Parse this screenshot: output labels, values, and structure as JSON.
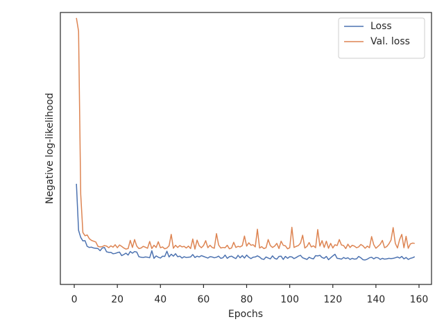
{
  "chart_data": {
    "type": "line",
    "xlabel": "Epochs",
    "ylabel": "Negative log-likelihood",
    "xlim": [
      -6.45,
      165.8
    ],
    "xticks": [
      0,
      20,
      40,
      60,
      80,
      100,
      120,
      140,
      160
    ],
    "ylim": [
      0,
      100
    ],
    "legend": "upper right",
    "grid": false,
    "x": [
      1,
      2,
      3,
      4,
      5,
      6,
      7,
      8,
      9,
      10,
      11,
      12,
      13,
      14,
      15,
      16,
      17,
      18,
      19,
      20,
      21,
      22,
      23,
      24,
      25,
      26,
      27,
      28,
      29,
      30,
      31,
      32,
      33,
      34,
      35,
      36,
      37,
      38,
      39,
      40,
      41,
      42,
      43,
      44,
      45,
      46,
      47,
      48,
      49,
      50,
      51,
      52,
      53,
      54,
      55,
      56,
      57,
      58,
      59,
      60,
      61,
      62,
      63,
      64,
      65,
      66,
      67,
      68,
      69,
      70,
      71,
      72,
      73,
      74,
      75,
      76,
      77,
      78,
      79,
      80,
      81,
      82,
      83,
      84,
      85,
      86,
      87,
      88,
      89,
      90,
      91,
      92,
      93,
      94,
      95,
      96,
      97,
      98,
      99,
      100,
      101,
      102,
      103,
      104,
      105,
      106,
      107,
      108,
      109,
      110,
      111,
      112,
      113,
      114,
      115,
      116,
      117,
      118,
      119,
      120,
      121,
      122,
      123,
      124,
      125,
      126,
      127,
      128,
      129,
      130,
      131,
      132,
      133,
      134,
      135,
      136,
      137,
      138,
      139,
      140,
      141,
      142,
      143,
      144,
      145,
      146,
      147,
      148,
      149,
      150,
      151,
      152,
      153,
      154,
      155,
      156,
      157,
      158
    ],
    "series": [
      {
        "name": "Loss",
        "color": "#4c72b0",
        "values": [
          37,
          19.9,
          17.3,
          16,
          16.1,
          14,
          13.6,
          13.7,
          13.4,
          13.3,
          13.2,
          12.4,
          13.4,
          13.6,
          12,
          11.8,
          11.8,
          11.3,
          11.4,
          11.7,
          11.9,
          10.6,
          11,
          11.5,
          10.8,
          12.1,
          11.5,
          12.1,
          11.9,
          10.2,
          10,
          9.9,
          10.1,
          10,
          9.8,
          12.4,
          9.6,
          10.5,
          10,
          9.7,
          10.4,
          10.3,
          12.2,
          10.1,
          11.1,
          10.4,
          11.3,
          10.2,
          10.4,
          9.7,
          10.2,
          9.9,
          10,
          10.1,
          11,
          9.9,
          10.4,
          10.1,
          10.6,
          10.3,
          10,
          9.7,
          10.2,
          10.1,
          9.8,
          10,
          10.4,
          9.6,
          9.8,
          10.8,
          9.6,
          10.2,
          10.4,
          9.9,
          9.5,
          10.7,
          9.8,
          10.6,
          9.7,
          10.8,
          10,
          9.5,
          10,
          10.1,
          10.5,
          10.1,
          9.4,
          9.2,
          10.1,
          9.7,
          9.4,
          10.5,
          9.6,
          9.3,
          10.3,
          10.4,
          9.2,
          10.3,
          9.6,
          10.2,
          10.1,
          9.5,
          9.9,
          10.4,
          10.7,
          9.8,
          9.5,
          9.2,
          10,
          9.6,
          9.4,
          10.6,
          10.5,
          10.7,
          9.9,
          9.6,
          10.3,
          9.1,
          9.8,
          10.5,
          11.1,
          9.6,
          9.5,
          9.3,
          9.9,
          9.5,
          9.8,
          9.2,
          9.6,
          9.3,
          9.4,
          10.3,
          9.8,
          9.1,
          9,
          9.3,
          9.8,
          10,
          9.4,
          9.9,
          9.8,
          9.2,
          9.6,
          9.3,
          9.4,
          9.6,
          9.5,
          9.6,
          9.8,
          10.1,
          9.7,
          10.3,
          9.4,
          9.9,
          9.2,
          9.6,
          9.8,
          10.2
        ]
      },
      {
        "name": "Val. loss",
        "color": "#dd8452",
        "values": [
          98,
          93.1,
          33.2,
          19.1,
          17.9,
          18.2,
          16.8,
          16.2,
          15.9,
          15.6,
          14,
          13.8,
          13.9,
          14.3,
          14.1,
          13.5,
          14.2,
          13.7,
          14.6,
          13.5,
          14.5,
          14,
          13.4,
          13,
          13.2,
          16.2,
          13.6,
          16.5,
          14.1,
          13.2,
          13.4,
          14,
          13.7,
          13.3,
          15.8,
          13.2,
          14.4,
          13.6,
          15.7,
          13.5,
          13.8,
          13.1,
          13.4,
          14.2,
          18.4,
          13.3,
          14.4,
          13.6,
          14.3,
          13.8,
          14,
          13.4,
          14.1,
          13.2,
          16.7,
          13,
          16.3,
          14.2,
          13.5,
          14.3,
          16.1,
          13.5,
          14.4,
          13.6,
          13.3,
          18.7,
          14.5,
          13.4,
          13.6,
          13.5,
          14.4,
          13.1,
          13.4,
          15.5,
          13.6,
          14,
          13.8,
          14.3,
          17.8,
          14.1,
          15.3,
          14.4,
          14.6,
          13.8,
          20.3,
          13.4,
          13.9,
          13.2,
          13.5,
          16.5,
          14.3,
          13.6,
          14.1,
          15.1,
          13.2,
          15.9,
          14.4,
          14.2,
          13.1,
          13.5,
          21,
          13.6,
          14,
          14.3,
          15.2,
          18.1,
          13.4,
          14,
          15.4,
          13.8,
          14.2,
          13.5,
          20.2,
          14.1,
          16.1,
          13.6,
          15.9,
          13.3,
          15.1,
          13.4,
          14.6,
          14.3,
          16.5,
          14.5,
          14.3,
          13.2,
          14.8,
          13.6,
          14.4,
          14.1,
          13.5,
          13.8,
          14.7,
          14.2,
          13.3,
          14.1,
          13.5,
          17.6,
          14.6,
          13.3,
          14,
          14.8,
          16.2,
          13.5,
          13.9,
          14.9,
          16.3,
          20.9,
          15.1,
          13.4,
          16.5,
          18.4,
          13.5,
          17.7,
          13.3,
          14.9,
          15.2,
          15.1
        ]
      }
    ]
  }
}
